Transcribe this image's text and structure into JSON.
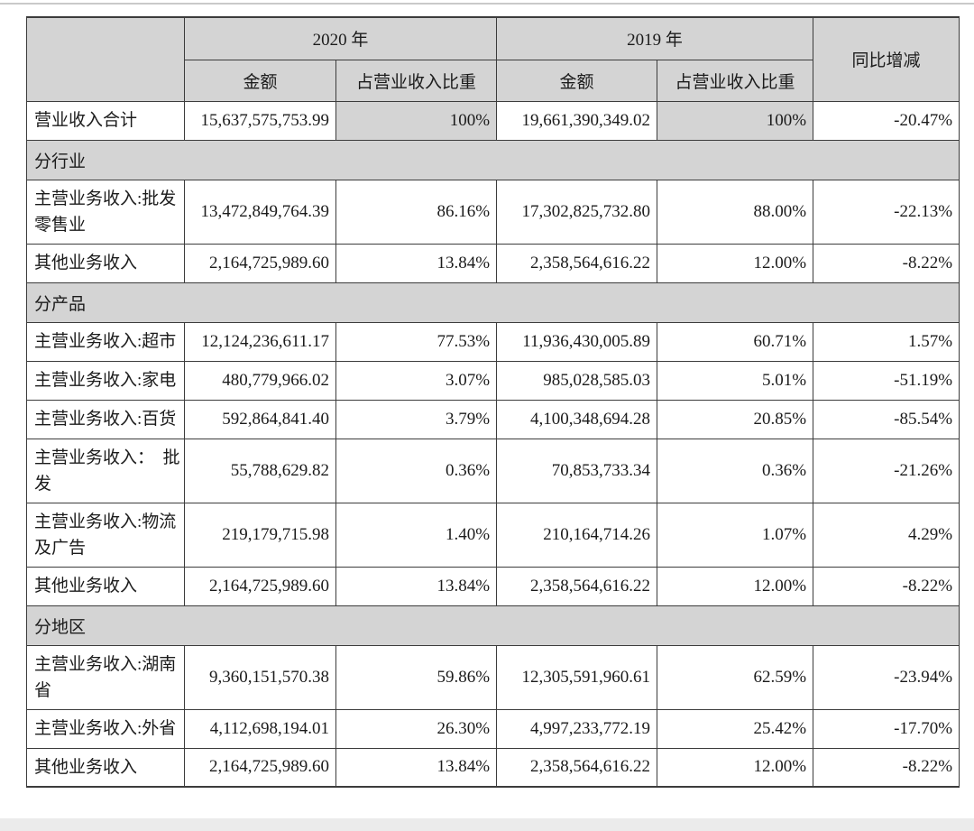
{
  "colors": {
    "header_bg": "#d4d4d4",
    "section_bg": "#d4d4d4",
    "border": "#3c3c3c",
    "bottom_strip": "#ebebeb",
    "text": "#1b1b1b"
  },
  "table": {
    "header": {
      "year_2020": "2020 年",
      "year_2019": "2019 年",
      "amount": "金额",
      "share": "占营业收入比重",
      "yoy": "同比增减"
    },
    "rows": [
      {
        "type": "total",
        "label": "营业收入合计",
        "amount_2020": "15,637,575,753.99",
        "share_2020": "100%",
        "amount_2019": "19,661,390,349.02",
        "share_2019": "100%",
        "yoy": "-20.47%"
      },
      {
        "type": "section",
        "label": "分行业"
      },
      {
        "type": "data",
        "label": "主营业务收入:批发零售业",
        "amount_2020": "13,472,849,764.39",
        "share_2020": "86.16%",
        "amount_2019": "17,302,825,732.80",
        "share_2019": "88.00%",
        "yoy": "-22.13%"
      },
      {
        "type": "data",
        "label": "其他业务收入",
        "amount_2020": "2,164,725,989.60",
        "share_2020": "13.84%",
        "amount_2019": "2,358,564,616.22",
        "share_2019": "12.00%",
        "yoy": "-8.22%"
      },
      {
        "type": "section",
        "label": "分产品"
      },
      {
        "type": "data",
        "label": "主营业务收入:超市",
        "amount_2020": "12,124,236,611.17",
        "share_2020": "77.53%",
        "amount_2019": "11,936,430,005.89",
        "share_2019": "60.71%",
        "yoy": "1.57%"
      },
      {
        "type": "data",
        "label": "主营业务收入:家电",
        "amount_2020": "480,779,966.02",
        "share_2020": "3.07%",
        "amount_2019": "985,028,585.03",
        "share_2019": "5.01%",
        "yoy": "-51.19%"
      },
      {
        "type": "data",
        "label": "主营业务收入:百货",
        "amount_2020": "592,864,841.40",
        "share_2020": "3.79%",
        "amount_2019": "4,100,348,694.28",
        "share_2019": "20.85%",
        "yoy": "-85.54%"
      },
      {
        "type": "data",
        "label": "主营业务收入：　批发",
        "amount_2020": "55,788,629.82",
        "share_2020": "0.36%",
        "amount_2019": "70,853,733.34",
        "share_2019": "0.36%",
        "yoy": "-21.26%"
      },
      {
        "type": "data",
        "label": "主营业务收入:物流及广告",
        "amount_2020": "219,179,715.98",
        "share_2020": "1.40%",
        "amount_2019": "210,164,714.26",
        "share_2019": "1.07%",
        "yoy": "4.29%"
      },
      {
        "type": "data",
        "label": "其他业务收入",
        "amount_2020": "2,164,725,989.60",
        "share_2020": "13.84%",
        "amount_2019": "2,358,564,616.22",
        "share_2019": "12.00%",
        "yoy": "-8.22%"
      },
      {
        "type": "section",
        "label": "分地区"
      },
      {
        "type": "data",
        "label": "主营业务收入:湖南省",
        "amount_2020": "9,360,151,570.38",
        "share_2020": "59.86%",
        "amount_2019": "12,305,591,960.61",
        "share_2019": "62.59%",
        "yoy": "-23.94%"
      },
      {
        "type": "data",
        "label": "主营业务收入:外省",
        "amount_2020": "4,112,698,194.01",
        "share_2020": "26.30%",
        "amount_2019": "4,997,233,772.19",
        "share_2019": "25.42%",
        "yoy": "-17.70%"
      },
      {
        "type": "data",
        "label": "其他业务收入",
        "amount_2020": "2,164,725,989.60",
        "share_2020": "13.84%",
        "amount_2019": "2,358,564,616.22",
        "share_2019": "12.00%",
        "yoy": "-8.22%"
      }
    ]
  }
}
